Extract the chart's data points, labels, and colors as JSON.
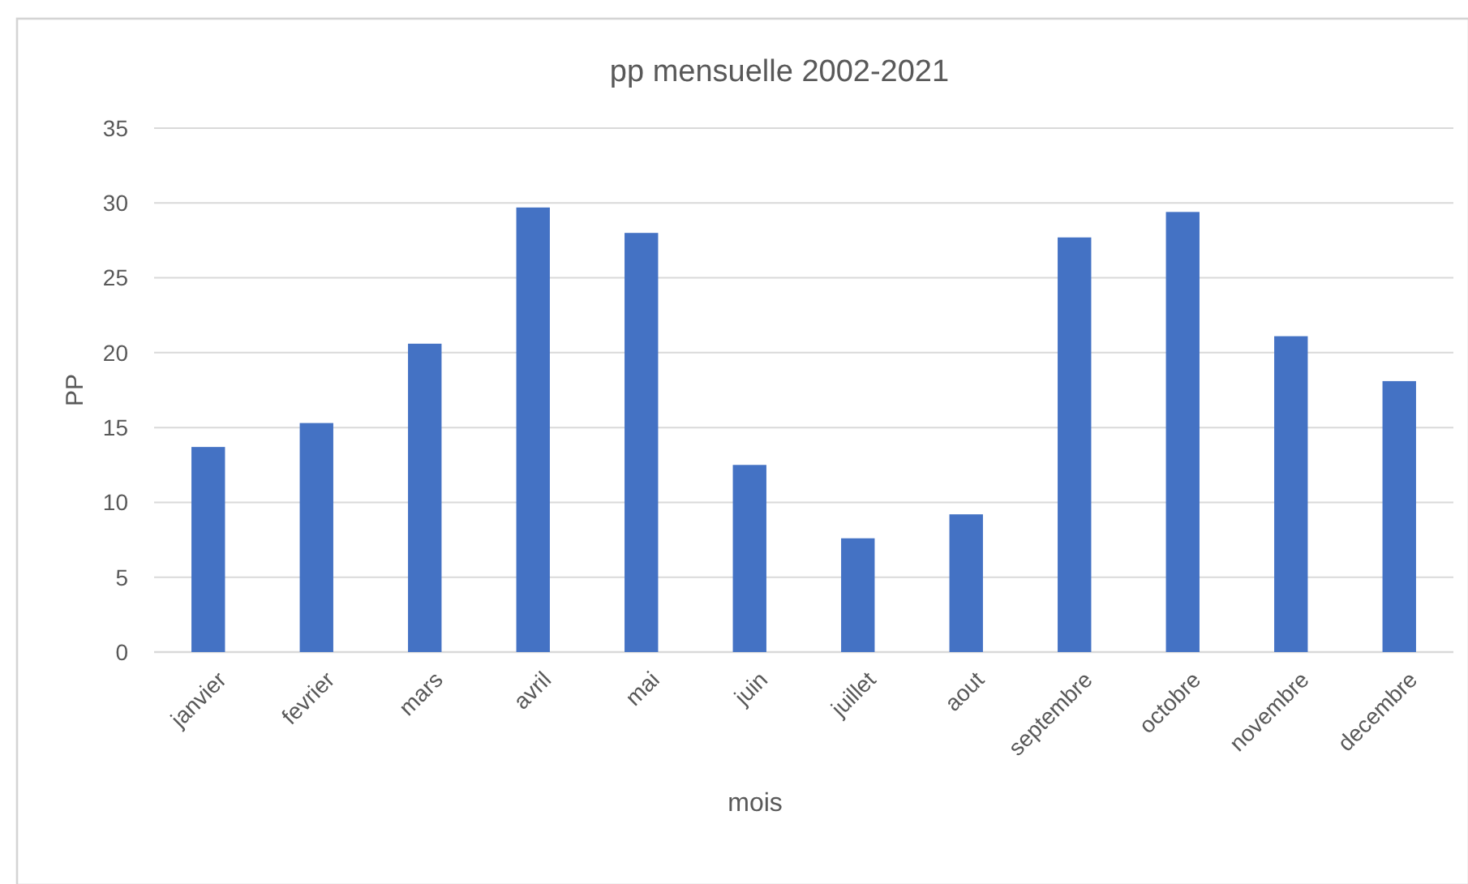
{
  "chart_data": {
    "type": "bar",
    "title": "pp mensuelle 2002-2021",
    "xlabel": "mois",
    "ylabel": "PP",
    "categories": [
      "janvier",
      "fevrier",
      "mars",
      "avril",
      "mai",
      "juin",
      "juillet",
      "aout",
      "septembre",
      "octobre",
      "novembre",
      "decembre"
    ],
    "values": [
      13.7,
      15.3,
      20.6,
      29.7,
      28.0,
      12.5,
      7.6,
      9.2,
      27.7,
      29.4,
      21.1,
      18.1
    ],
    "color": "#4472c4",
    "ylim": [
      0,
      35
    ],
    "yticks": [
      0,
      5,
      10,
      15,
      20,
      25,
      30,
      35
    ],
    "grid": "y"
  }
}
